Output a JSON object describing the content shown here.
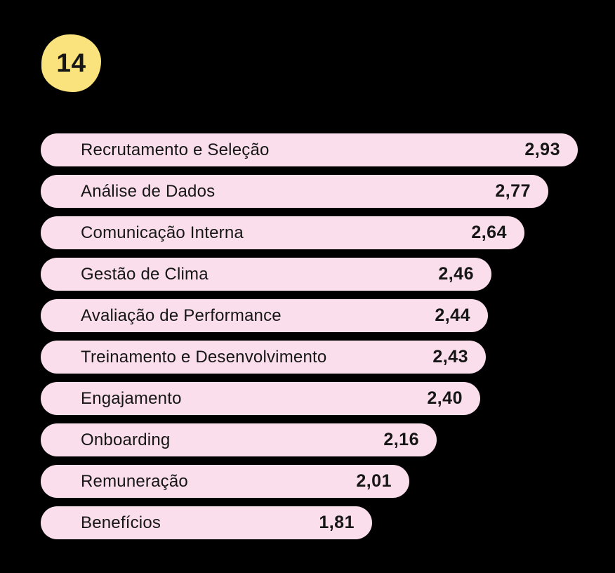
{
  "page": {
    "background_color": "#000000",
    "text_color": "#161616"
  },
  "badge": {
    "number": "14",
    "color": "#FAE37D"
  },
  "chart_data": {
    "type": "bar",
    "orientation": "horizontal",
    "title": "",
    "xlabel": "",
    "ylabel": "",
    "xlim": [
      0,
      3
    ],
    "grid": false,
    "legend": false,
    "bar_color": "#FADEEB",
    "categories": [
      "Recrutamento e Seleção",
      "Análise de Dados",
      "Comunicação Interna",
      "Gestão de Clima",
      "Avaliação de Performance",
      "Treinamento e Desenvolvimento",
      "Engajamento",
      "Onboarding",
      "Remuneração",
      "Benefícios"
    ],
    "values": [
      2.93,
      2.77,
      2.64,
      2.46,
      2.44,
      2.43,
      2.4,
      2.16,
      2.01,
      1.81
    ],
    "value_labels": [
      "2,93",
      "2,77",
      "2,64",
      "2,46",
      "2,44",
      "2,43",
      "2,40",
      "2,16",
      "2,01",
      "1,81"
    ]
  }
}
